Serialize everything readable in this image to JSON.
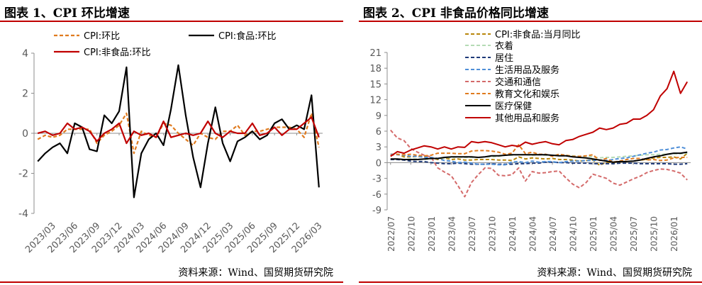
{
  "panels": [
    {
      "title": "图表 1、CPI 环比增速",
      "source": "资料来源：Wind、国贸期货研究院"
    },
    {
      "title": "图表 2、CPI 非食品价格同比增速",
      "source": "资料来源：Wind、国贸期货研究院"
    }
  ],
  "chart_data": [
    {
      "type": "line",
      "title": "",
      "xlabel": "",
      "ylabel": "",
      "ylim": [
        -4,
        4
      ],
      "yticks": [
        -4,
        -2,
        0,
        2,
        4
      ],
      "grid": false,
      "legend_position": "top",
      "x_tick_labels": [
        "2023/03",
        "2023/06",
        "2023/09",
        "2023/12",
        "2024/03",
        "2024/06",
        "2024/09",
        "2024/12",
        "2025/03",
        "2025/06",
        "2025/09",
        "2025/12",
        "2026/03"
      ],
      "x": [
        "2023/01",
        "2023/02",
        "2023/03",
        "2023/04",
        "2023/05",
        "2023/06",
        "2023/07",
        "2023/08",
        "2023/09",
        "2023/10",
        "2023/11",
        "2023/12",
        "2024/01",
        "2024/02",
        "2024/03",
        "2024/04",
        "2024/05",
        "2024/06",
        "2024/07",
        "2024/08",
        "2024/09",
        "2024/10",
        "2024/11",
        "2024/12",
        "2025/01",
        "2025/02",
        "2025/03",
        "2025/04",
        "2025/05",
        "2025/06",
        "2025/07",
        "2025/08",
        "2025/09",
        "2025/10",
        "2025/11",
        "2025/12",
        "2026/01",
        "2026/02",
        "2026/03"
      ],
      "series": [
        {
          "name": "CPI:环比",
          "color": "#e07b1f",
          "dash": "dashed",
          "values": [
            -0.3,
            -0.1,
            -0.2,
            -0.1,
            0.2,
            0.2,
            0.2,
            0.2,
            -0.5,
            -0.1,
            0.1,
            0.4,
            1.0,
            -1.0,
            0.1,
            -0.1,
            -0.2,
            0.5,
            0.4,
            0.0,
            -0.3,
            -0.6,
            0.0,
            -0.2,
            -0.3,
            0.1,
            0.1,
            0.4,
            -0.1,
            0.1,
            0.1,
            0.2,
            0.3,
            0.3,
            0.3,
            0.2,
            -0.2,
            1.0,
            -0.7
          ]
        },
        {
          "name": "CPI:食品:环比",
          "color": "#000000",
          "dash": "solid",
          "values": [
            -1.4,
            -1.0,
            -0.7,
            -0.5,
            -1.0,
            0.5,
            0.3,
            -0.8,
            -0.9,
            0.9,
            0.5,
            1.1,
            3.3,
            -3.2,
            -1.0,
            -0.3,
            0.0,
            -0.6,
            1.2,
            3.4,
            0.9,
            -1.2,
            -2.7,
            -0.5,
            1.3,
            -0.5,
            -1.4,
            -0.4,
            -0.2,
            0.1,
            -0.3,
            -0.1,
            0.5,
            0.7,
            0.2,
            0.4,
            0.2,
            1.9,
            -2.7
          ]
        },
        {
          "name": "CPI:非食品:环比",
          "color": "#c00000",
          "dash": "solid",
          "values": [
            0.0,
            0.1,
            -0.1,
            0.0,
            0.5,
            0.2,
            0.3,
            0.1,
            -0.4,
            0.0,
            0.2,
            0.5,
            -0.5,
            0.1,
            -0.1,
            0.0,
            -0.2,
            0.6,
            -0.2,
            -0.1,
            0.0,
            -0.1,
            0.0,
            0.6,
            0.0,
            -0.2,
            0.1,
            0.0,
            0.0,
            0.5,
            -0.1,
            0.0,
            0.3,
            -0.1,
            0.2,
            0.2,
            0.5,
            0.8,
            -0.2
          ]
        }
      ]
    },
    {
      "type": "line",
      "title": "",
      "xlabel": "",
      "ylabel": "",
      "ylim": [
        -9,
        21
      ],
      "yticks": [
        -9,
        -6,
        -3,
        0,
        3,
        6,
        9,
        12,
        15,
        18,
        21
      ],
      "grid": false,
      "legend_position": "top-left",
      "x_tick_labels": [
        "2022/07",
        "2022/10",
        "2023/01",
        "2023/04",
        "2023/07",
        "2023/10",
        "2024/01",
        "2024/04",
        "2024/07",
        "2024/10",
        "2025/01",
        "2025/04",
        "2025/07",
        "2025/10",
        "2026/01"
      ],
      "x": [
        "2022/07",
        "2022/08",
        "2022/09",
        "2022/10",
        "2022/11",
        "2022/12",
        "2023/01",
        "2023/02",
        "2023/03",
        "2023/04",
        "2023/05",
        "2023/06",
        "2023/07",
        "2023/08",
        "2023/09",
        "2023/10",
        "2023/11",
        "2023/12",
        "2024/01",
        "2024/02",
        "2024/03",
        "2024/04",
        "2024/05",
        "2024/06",
        "2024/07",
        "2024/08",
        "2024/09",
        "2024/10",
        "2024/11",
        "2024/12",
        "2025/01",
        "2025/02",
        "2025/03",
        "2025/04",
        "2025/05",
        "2025/06",
        "2025/07",
        "2025/08",
        "2025/09",
        "2025/10",
        "2025/11",
        "2025/12",
        "2026/01",
        "2026/02",
        "2026/03"
      ],
      "series": [
        {
          "name": "CPI:非食品:当月同比",
          "color": "#b8860b",
          "dash": "dashed",
          "values": [
            1.6,
            1.6,
            1.1,
            1.1,
            1.2,
            1.1,
            1.0,
            0.6,
            0.9,
            0.6,
            0.7,
            0.5,
            0.5,
            0.6,
            0.6,
            0.6,
            0.5,
            0.5,
            0.4,
            1.1,
            0.7,
            0.9,
            0.8,
            0.7,
            0.8,
            0.6,
            0.6,
            0.5,
            0.3,
            0.4,
            0.5,
            -0.5,
            0.1,
            0.0,
            0.1,
            0.2,
            0.3,
            0.5,
            0.6,
            0.9,
            1.0,
            1.0,
            1.1,
            0.7,
            1.8
          ]
        },
        {
          "name": "衣着",
          "color": "#b5dbb5",
          "dash": "dashed",
          "values": [
            0.6,
            0.6,
            0.6,
            0.7,
            0.7,
            0.6,
            0.7,
            0.8,
            0.9,
            1.0,
            1.1,
            1.0,
            1.0,
            1.0,
            1.1,
            1.1,
            1.2,
            1.4,
            1.4,
            1.5,
            1.5,
            1.4,
            1.5,
            1.4,
            1.4,
            1.4,
            1.4,
            1.3,
            1.2,
            1.2,
            1.1,
            0.9,
            1.0,
            1.0,
            1.1,
            1.2,
            1.3,
            1.4,
            1.5,
            1.5,
            1.6,
            1.6,
            1.7,
            1.7,
            1.8
          ]
        },
        {
          "name": "居住",
          "color": "#1f3a78",
          "dash": "dashed",
          "values": [
            0.6,
            0.6,
            0.5,
            0.3,
            0.2,
            0.2,
            0.0,
            -0.1,
            -0.2,
            -0.2,
            -0.1,
            -0.2,
            -0.3,
            -0.3,
            -0.3,
            -0.2,
            -0.3,
            -0.3,
            -0.3,
            -0.2,
            -0.2,
            -0.1,
            -0.1,
            0.1,
            0.1,
            0.0,
            0.0,
            -0.1,
            -0.1,
            -0.1,
            -0.2,
            -0.2,
            -0.2,
            -0.2,
            -0.1,
            -0.1,
            -0.1,
            -0.2,
            -0.2,
            -0.2,
            -0.2,
            -0.2,
            -0.3,
            -0.3,
            -0.2
          ]
        },
        {
          "name": "生活用品及服务",
          "color": "#4f8fd8",
          "dash": "dashed",
          "values": [
            1.6,
            1.5,
            1.4,
            1.2,
            1.2,
            1.0,
            1.0,
            0.8,
            0.4,
            0.3,
            0.0,
            0.1,
            -0.1,
            -0.3,
            -0.3,
            -0.3,
            -0.4,
            -0.4,
            0.1,
            0.2,
            0.0,
            0.3,
            0.1,
            0.2,
            0.2,
            0.0,
            0.2,
            0.3,
            0.3,
            0.4,
            0.4,
            0.5,
            0.4,
            0.6,
            0.8,
            0.9,
            1.2,
            1.5,
            1.8,
            2.0,
            2.4,
            2.5,
            2.8,
            3.0,
            2.6
          ]
        },
        {
          "name": "交通和通信",
          "color": "#d46a6a",
          "dash": "dashed",
          "values": [
            6.2,
            4.7,
            4.2,
            2.7,
            2.0,
            1.4,
            1.1,
            -1.0,
            -1.8,
            -2.5,
            -4.4,
            -6.5,
            -3.8,
            -2.3,
            -1.0,
            -1.1,
            -2.4,
            -2.5,
            -2.3,
            -1.0,
            -3.5,
            -1.7,
            -2.0,
            -1.9,
            -1.7,
            -1.6,
            -2.9,
            -4.1,
            -4.8,
            -3.8,
            -2.2,
            -2.6,
            -3.0,
            -3.9,
            -4.3,
            -3.7,
            -3.1,
            -2.6,
            -1.9,
            -1.5,
            -1.2,
            -1.3,
            -1.6,
            -2.0,
            -3.3
          ]
        },
        {
          "name": "教育文化和娱乐",
          "color": "#e07b1f",
          "dash": "dashed",
          "values": [
            1.4,
            1.6,
            1.5,
            1.6,
            1.4,
            1.3,
            1.4,
            1.8,
            1.8,
            1.8,
            1.7,
            1.7,
            2.2,
            2.3,
            2.3,
            2.2,
            2.0,
            1.6,
            1.8,
            3.4,
            1.7,
            2.0,
            1.6,
            1.6,
            1.2,
            1.6,
            1.4,
            1.2,
            1.2,
            1.3,
            1.5,
            0.4,
            0.8,
            0.1,
            0.3,
            0.6,
            0.8,
            0.8,
            0.5,
            0.6,
            0.4,
            0.5,
            0.9,
            1.0,
            1.0
          ]
        },
        {
          "name": "医疗保健",
          "color": "#000000",
          "dash": "solid",
          "values": [
            0.7,
            0.7,
            0.6,
            0.6,
            0.6,
            0.7,
            0.8,
            0.8,
            1.0,
            1.1,
            1.1,
            1.1,
            1.1,
            1.0,
            1.1,
            1.3,
            1.3,
            1.4,
            1.5,
            1.5,
            1.5,
            1.5,
            1.5,
            1.5,
            1.4,
            1.3,
            1.3,
            1.1,
            1.0,
            0.9,
            0.7,
            0.5,
            0.3,
            0.1,
            0.2,
            0.2,
            0.3,
            0.5,
            0.8,
            1.1,
            1.3,
            1.6,
            1.8,
            1.8,
            2.0
          ]
        },
        {
          "name": "其他用品和服务",
          "color": "#c00000",
          "dash": "solid",
          "values": [
            1.2,
            2.1,
            1.8,
            2.4,
            2.8,
            3.2,
            3.0,
            2.6,
            3.0,
            2.6,
            3.0,
            2.9,
            4.0,
            3.8,
            4.0,
            3.8,
            3.4,
            3.0,
            3.3,
            3.1,
            3.9,
            3.5,
            3.8,
            4.0,
            3.6,
            3.4,
            4.2,
            4.4,
            5.0,
            5.4,
            5.8,
            6.6,
            6.3,
            6.6,
            7.3,
            7.5,
            8.3,
            8.3,
            9.0,
            10.1,
            12.7,
            14.1,
            17.4,
            13.2,
            15.4
          ]
        }
      ]
    }
  ]
}
